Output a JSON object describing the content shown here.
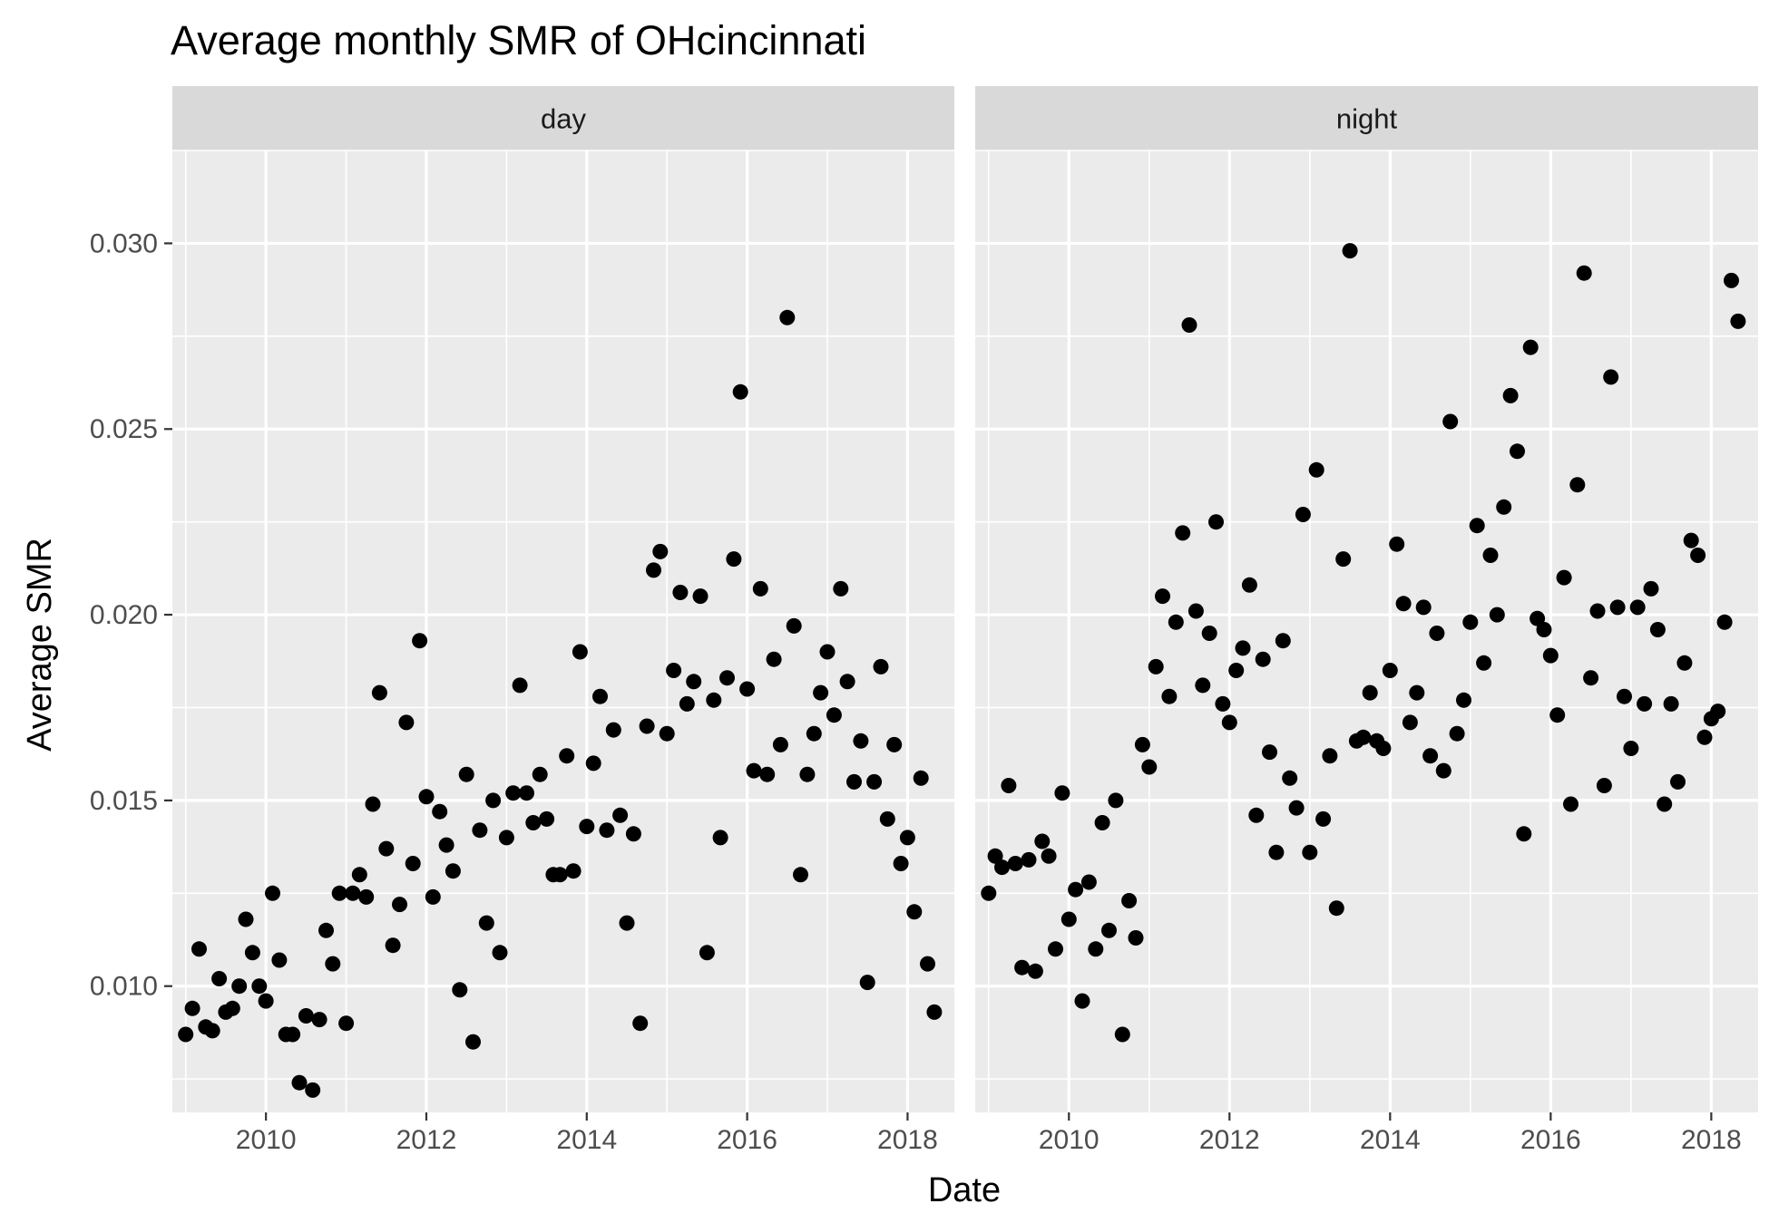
{
  "chart_data": {
    "type": "scatter",
    "title": "Average monthly SMR of OHcincinnati",
    "xlabel": "Date",
    "ylabel": "Average SMR",
    "x_ticks": [
      "2010",
      "2012",
      "2014",
      "2016",
      "2018"
    ],
    "y_ticks": [
      "0.010",
      "0.015",
      "0.020",
      "0.025",
      "0.030"
    ],
    "xlim": [
      "2008-11",
      "2018-08"
    ],
    "ylim": [
      0.0066,
      0.0325
    ],
    "grid": true,
    "facets": [
      {
        "label": "day",
        "points": [
          [
            "2009-01",
            0.0087
          ],
          [
            "2009-02",
            0.0094
          ],
          [
            "2009-03",
            0.011
          ],
          [
            "2009-04",
            0.0089
          ],
          [
            "2009-05",
            0.0088
          ],
          [
            "2009-06",
            0.0102
          ],
          [
            "2009-07",
            0.0093
          ],
          [
            "2009-08",
            0.0094
          ],
          [
            "2009-09",
            0.01
          ],
          [
            "2009-10",
            0.0118
          ],
          [
            "2009-11",
            0.0109
          ],
          [
            "2009-12",
            0.01
          ],
          [
            "2010-01",
            0.0096
          ],
          [
            "2010-02",
            0.0125
          ],
          [
            "2010-03",
            0.0107
          ],
          [
            "2010-04",
            0.0087
          ],
          [
            "2010-05",
            0.0087
          ],
          [
            "2010-06",
            0.0074
          ],
          [
            "2010-07",
            0.0092
          ],
          [
            "2010-08",
            0.0072
          ],
          [
            "2010-09",
            0.0091
          ],
          [
            "2010-10",
            0.0115
          ],
          [
            "2010-11",
            0.0106
          ],
          [
            "2010-12",
            0.0125
          ],
          [
            "2011-01",
            0.009
          ],
          [
            "2011-02",
            0.0125
          ],
          [
            "2011-03",
            0.013
          ],
          [
            "2011-04",
            0.0124
          ],
          [
            "2011-05",
            0.0149
          ],
          [
            "2011-06",
            0.0179
          ],
          [
            "2011-07",
            0.0137
          ],
          [
            "2011-08",
            0.0111
          ],
          [
            "2011-09",
            0.0122
          ],
          [
            "2011-10",
            0.0171
          ],
          [
            "2011-11",
            0.0133
          ],
          [
            "2011-12",
            0.0193
          ],
          [
            "2012-01",
            0.0151
          ],
          [
            "2012-02",
            0.0124
          ],
          [
            "2012-03",
            0.0147
          ],
          [
            "2012-04",
            0.0138
          ],
          [
            "2012-05",
            0.0131
          ],
          [
            "2012-06",
            0.0099
          ],
          [
            "2012-07",
            0.0157
          ],
          [
            "2012-08",
            0.0085
          ],
          [
            "2012-09",
            0.0142
          ],
          [
            "2012-10",
            0.0117
          ],
          [
            "2012-11",
            0.015
          ],
          [
            "2012-12",
            0.0109
          ],
          [
            "2013-01",
            0.014
          ],
          [
            "2013-02",
            0.0152
          ],
          [
            "2013-03",
            0.0181
          ],
          [
            "2013-04",
            0.0152
          ],
          [
            "2013-05",
            0.0144
          ],
          [
            "2013-06",
            0.0157
          ],
          [
            "2013-07",
            0.0145
          ],
          [
            "2013-08",
            0.013
          ],
          [
            "2013-09",
            0.013
          ],
          [
            "2013-10",
            0.0162
          ],
          [
            "2013-11",
            0.0131
          ],
          [
            "2013-12",
            0.019
          ],
          [
            "2014-01",
            0.0143
          ],
          [
            "2014-02",
            0.016
          ],
          [
            "2014-03",
            0.0178
          ],
          [
            "2014-04",
            0.0142
          ],
          [
            "2014-05",
            0.0169
          ],
          [
            "2014-06",
            0.0146
          ],
          [
            "2014-07",
            0.0117
          ],
          [
            "2014-08",
            0.0141
          ],
          [
            "2014-09",
            0.009
          ],
          [
            "2014-10",
            0.017
          ],
          [
            "2014-11",
            0.0212
          ],
          [
            "2014-12",
            0.0217
          ],
          [
            "2015-01",
            0.0168
          ],
          [
            "2015-02",
            0.0185
          ],
          [
            "2015-03",
            0.0206
          ],
          [
            "2015-04",
            0.0176
          ],
          [
            "2015-05",
            0.0182
          ],
          [
            "2015-06",
            0.0205
          ],
          [
            "2015-07",
            0.0109
          ],
          [
            "2015-08",
            0.0177
          ],
          [
            "2015-09",
            0.014
          ],
          [
            "2015-10",
            0.0183
          ],
          [
            "2015-11",
            0.0215
          ],
          [
            "2015-12",
            0.026
          ],
          [
            "2016-01",
            0.018
          ],
          [
            "2016-02",
            0.0158
          ],
          [
            "2016-03",
            0.0207
          ],
          [
            "2016-04",
            0.0157
          ],
          [
            "2016-05",
            0.0188
          ],
          [
            "2016-06",
            0.0165
          ],
          [
            "2016-07",
            0.028
          ],
          [
            "2016-08",
            0.0197
          ],
          [
            "2016-09",
            0.013
          ],
          [
            "2016-10",
            0.0157
          ],
          [
            "2016-11",
            0.0168
          ],
          [
            "2016-12",
            0.0179
          ],
          [
            "2017-01",
            0.019
          ],
          [
            "2017-02",
            0.0173
          ],
          [
            "2017-03",
            0.0207
          ],
          [
            "2017-04",
            0.0182
          ],
          [
            "2017-05",
            0.0155
          ],
          [
            "2017-06",
            0.0166
          ],
          [
            "2017-07",
            0.0101
          ],
          [
            "2017-08",
            0.0155
          ],
          [
            "2017-09",
            0.0186
          ],
          [
            "2017-10",
            0.0145
          ],
          [
            "2017-11",
            0.0165
          ],
          [
            "2017-12",
            0.0133
          ],
          [
            "2018-01",
            0.014
          ],
          [
            "2018-02",
            0.012
          ],
          [
            "2018-03",
            0.0156
          ],
          [
            "2018-04",
            0.0106
          ],
          [
            "2018-05",
            0.0093
          ]
        ]
      },
      {
        "label": "night",
        "points": [
          [
            "2009-01",
            0.0125
          ],
          [
            "2009-02",
            0.0135
          ],
          [
            "2009-03",
            0.0132
          ],
          [
            "2009-04",
            0.0154
          ],
          [
            "2009-05",
            0.0133
          ],
          [
            "2009-06",
            0.0105
          ],
          [
            "2009-07",
            0.0134
          ],
          [
            "2009-08",
            0.0104
          ],
          [
            "2009-09",
            0.0139
          ],
          [
            "2009-10",
            0.0135
          ],
          [
            "2009-11",
            0.011
          ],
          [
            "2009-12",
            0.0152
          ],
          [
            "2010-01",
            0.0118
          ],
          [
            "2010-02",
            0.0126
          ],
          [
            "2010-03",
            0.0096
          ],
          [
            "2010-04",
            0.0128
          ],
          [
            "2010-05",
            0.011
          ],
          [
            "2010-06",
            0.0144
          ],
          [
            "2010-07",
            0.0115
          ],
          [
            "2010-08",
            0.015
          ],
          [
            "2010-09",
            0.0087
          ],
          [
            "2010-10",
            0.0123
          ],
          [
            "2010-11",
            0.0113
          ],
          [
            "2010-12",
            0.0165
          ],
          [
            "2011-01",
            0.0159
          ],
          [
            "2011-02",
            0.0186
          ],
          [
            "2011-03",
            0.0205
          ],
          [
            "2011-04",
            0.0178
          ],
          [
            "2011-05",
            0.0198
          ],
          [
            "2011-06",
            0.0222
          ],
          [
            "2011-07",
            0.0278
          ],
          [
            "2011-08",
            0.0201
          ],
          [
            "2011-09",
            0.0181
          ],
          [
            "2011-10",
            0.0195
          ],
          [
            "2011-11",
            0.0225
          ],
          [
            "2011-12",
            0.0176
          ],
          [
            "2012-01",
            0.0171
          ],
          [
            "2012-02",
            0.0185
          ],
          [
            "2012-03",
            0.0191
          ],
          [
            "2012-04",
            0.0208
          ],
          [
            "2012-05",
            0.0146
          ],
          [
            "2012-06",
            0.0188
          ],
          [
            "2012-07",
            0.0163
          ],
          [
            "2012-08",
            0.0136
          ],
          [
            "2012-09",
            0.0193
          ],
          [
            "2012-10",
            0.0156
          ],
          [
            "2012-11",
            0.0148
          ],
          [
            "2012-12",
            0.0227
          ],
          [
            "2013-01",
            0.0136
          ],
          [
            "2013-02",
            0.0239
          ],
          [
            "2013-03",
            0.0145
          ],
          [
            "2013-04",
            0.0162
          ],
          [
            "2013-05",
            0.0121
          ],
          [
            "2013-06",
            0.0215
          ],
          [
            "2013-07",
            0.0298
          ],
          [
            "2013-08",
            0.0166
          ],
          [
            "2013-09",
            0.0167
          ],
          [
            "2013-10",
            0.0179
          ],
          [
            "2013-11",
            0.0166
          ],
          [
            "2013-12",
            0.0164
          ],
          [
            "2014-01",
            0.0185
          ],
          [
            "2014-02",
            0.0219
          ],
          [
            "2014-03",
            0.0203
          ],
          [
            "2014-04",
            0.0171
          ],
          [
            "2014-05",
            0.0179
          ],
          [
            "2014-06",
            0.0202
          ],
          [
            "2014-07",
            0.0162
          ],
          [
            "2014-08",
            0.0195
          ],
          [
            "2014-09",
            0.0158
          ],
          [
            "2014-10",
            0.0252
          ],
          [
            "2014-11",
            0.0168
          ],
          [
            "2014-12",
            0.0177
          ],
          [
            "2015-01",
            0.0198
          ],
          [
            "2015-02",
            0.0224
          ],
          [
            "2015-03",
            0.0187
          ],
          [
            "2015-04",
            0.0216
          ],
          [
            "2015-05",
            0.02
          ],
          [
            "2015-06",
            0.0229
          ],
          [
            "2015-07",
            0.0259
          ],
          [
            "2015-08",
            0.0244
          ],
          [
            "2015-09",
            0.0141
          ],
          [
            "2015-10",
            0.0272
          ],
          [
            "2015-11",
            0.0199
          ],
          [
            "2015-12",
            0.0196
          ],
          [
            "2016-01",
            0.0189
          ],
          [
            "2016-02",
            0.0173
          ],
          [
            "2016-03",
            0.021
          ],
          [
            "2016-04",
            0.0149
          ],
          [
            "2016-05",
            0.0235
          ],
          [
            "2016-06",
            0.0292
          ],
          [
            "2016-07",
            0.0183
          ],
          [
            "2016-08",
            0.0201
          ],
          [
            "2016-09",
            0.0154
          ],
          [
            "2016-10",
            0.0264
          ],
          [
            "2016-11",
            0.0202
          ],
          [
            "2016-12",
            0.0178
          ],
          [
            "2017-01",
            0.0164
          ],
          [
            "2017-02",
            0.0202
          ],
          [
            "2017-03",
            0.0176
          ],
          [
            "2017-04",
            0.0207
          ],
          [
            "2017-05",
            0.0196
          ],
          [
            "2017-06",
            0.0149
          ],
          [
            "2017-07",
            0.0176
          ],
          [
            "2017-08",
            0.0155
          ],
          [
            "2017-09",
            0.0187
          ],
          [
            "2017-10",
            0.022
          ],
          [
            "2017-11",
            0.0216
          ],
          [
            "2017-12",
            0.0167
          ],
          [
            "2018-01",
            0.0172
          ],
          [
            "2018-02",
            0.0174
          ],
          [
            "2018-03",
            0.0198
          ],
          [
            "2018-04",
            0.029
          ],
          [
            "2018-05",
            0.0279
          ]
        ]
      }
    ]
  }
}
